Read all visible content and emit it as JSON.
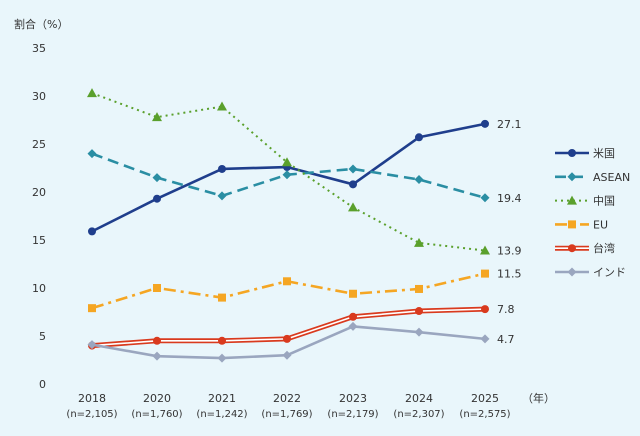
{
  "chart_data": {
    "type": "line",
    "ylabel": "割合（%）",
    "x_unit_label": "（年）",
    "ylim": [
      0,
      35
    ],
    "yticks": [
      0,
      5,
      10,
      15,
      20,
      25,
      30,
      35
    ],
    "grid": false,
    "legend_position": "right",
    "categories": [
      "2018",
      "2020",
      "2021",
      "2022",
      "2023",
      "2024",
      "2025"
    ],
    "category_sublabels": [
      "(n=2,105)",
      "(n=1,760)",
      "(n=1,242)",
      "(n=1,769)",
      "(n=2,179)",
      "(n=2,307)",
      "(n=2,575)"
    ],
    "series": [
      {
        "name": "米国",
        "values": [
          15.9,
          19.3,
          22.4,
          22.6,
          20.8,
          25.7,
          27.1
        ],
        "end_label": "27.1",
        "color": "#1f3e8c",
        "dash": "solid",
        "marker": "circle"
      },
      {
        "name": "ASEAN",
        "values": [
          24.0,
          21.5,
          19.6,
          21.8,
          22.4,
          21.3,
          19.4
        ],
        "end_label": "19.4",
        "color": "#2a8ea3",
        "dash": "longdash",
        "marker": "diamond"
      },
      {
        "name": "中国",
        "values": [
          30.3,
          27.8,
          28.9,
          23.1,
          18.4,
          14.7,
          13.9
        ],
        "end_label": "13.9",
        "color": "#5aa02c",
        "dash": "dot",
        "marker": "triangle"
      },
      {
        "name": "EU",
        "values": [
          7.9,
          10.0,
          9.0,
          10.7,
          9.4,
          9.9,
          11.5
        ],
        "end_label": "11.5",
        "color": "#f5a623",
        "dash": "dashdot",
        "marker": "square"
      },
      {
        "name": "台湾",
        "values": [
          4.0,
          4.5,
          4.5,
          4.7,
          7.0,
          7.6,
          7.8
        ],
        "end_label": "7.8",
        "color": "#d93a1e",
        "dash": "double",
        "marker": "circle"
      },
      {
        "name": "インド",
        "values": [
          4.1,
          2.9,
          2.7,
          3.0,
          6.0,
          5.4,
          4.7
        ],
        "end_label": "4.7",
        "color": "#9aa6bf",
        "dash": "solid",
        "marker": "diamond"
      }
    ]
  }
}
